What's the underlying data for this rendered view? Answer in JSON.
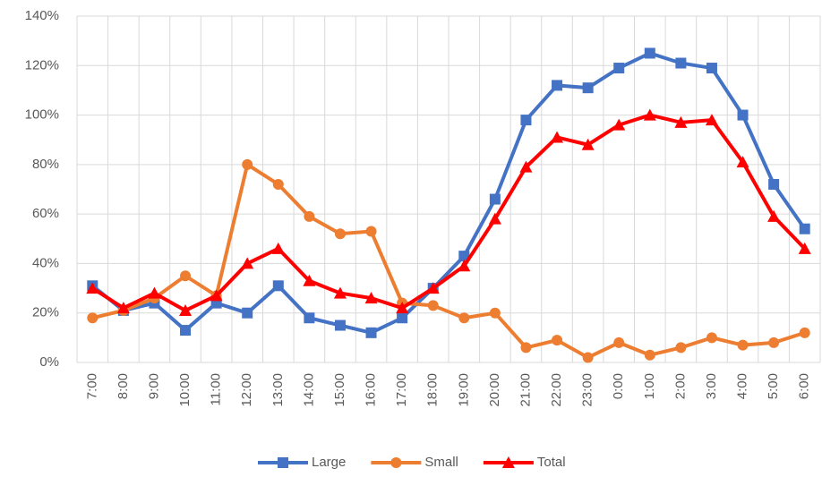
{
  "chart_data": {
    "type": "line",
    "categories": [
      "7:00",
      "8:00",
      "9:00",
      "10:00",
      "11:00",
      "12:00",
      "13:00",
      "14:00",
      "15:00",
      "16:00",
      "17:00",
      "18:00",
      "19:00",
      "20:00",
      "21:00",
      "22:00",
      "23:00",
      "0:00",
      "1:00",
      "2:00",
      "3:00",
      "4:00",
      "5:00",
      "6:00"
    ],
    "series": [
      {
        "name": "Large",
        "color": "#4472c4",
        "marker": "square",
        "values": [
          31,
          21,
          24,
          13,
          24,
          20,
          31,
          18,
          15,
          12,
          18,
          30,
          43,
          66,
          98,
          112,
          111,
          119,
          125,
          121,
          119,
          100,
          72,
          54
        ]
      },
      {
        "name": "Small",
        "color": "#ed7d31",
        "marker": "circle",
        "values": [
          18,
          21,
          26,
          35,
          27,
          80,
          72,
          59,
          52,
          53,
          24,
          23,
          18,
          20,
          6,
          9,
          2,
          8,
          3,
          6,
          10,
          7,
          8,
          12
        ]
      },
      {
        "name": "Total",
        "color": "#ff0000",
        "marker": "triangle",
        "values": [
          30,
          22,
          28,
          21,
          27,
          40,
          46,
          33,
          28,
          26,
          22,
          30,
          39,
          58,
          79,
          91,
          88,
          96,
          100,
          97,
          98,
          81,
          59,
          46
        ]
      }
    ],
    "ylim": [
      0,
      140
    ],
    "yticks": [
      {
        "value": 0,
        "label": "0%"
      },
      {
        "value": 20,
        "label": "20%"
      },
      {
        "value": 40,
        "label": "40%"
      },
      {
        "value": 60,
        "label": "60%"
      },
      {
        "value": 80,
        "label": "80%"
      },
      {
        "value": 100,
        "label": "100%"
      },
      {
        "value": 120,
        "label": "120%"
      },
      {
        "value": 140,
        "label": "140%"
      }
    ],
    "grid": true,
    "legend": "bottom"
  }
}
